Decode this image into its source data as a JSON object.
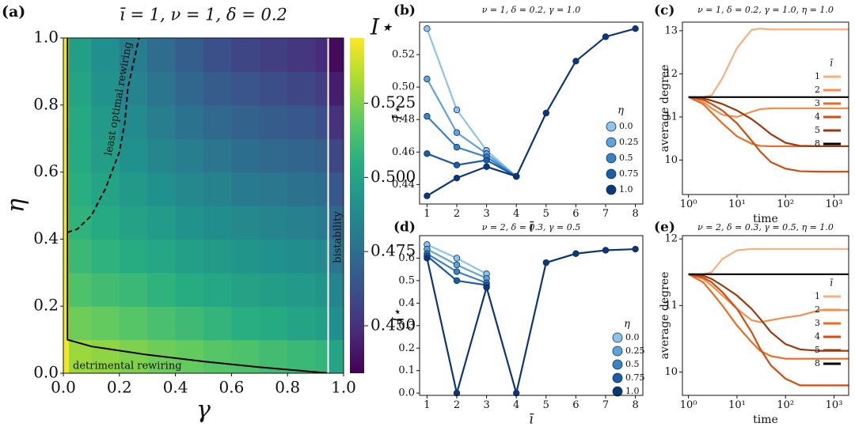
{
  "chart_data": [
    {
      "type": "heatmap",
      "panel_label": "(a)",
      "title": "ī = 1,  ν = 1,  δ = 0.2",
      "xlabel": "γ",
      "ylabel": "η",
      "colorbar_label": "I⋆",
      "colormap": "viridis",
      "x_edges": [
        0,
        0.02,
        0.1,
        0.2,
        0.3,
        0.4,
        0.5,
        0.6,
        0.7,
        0.8,
        0.9,
        0.945,
        1.0
      ],
      "y_edges": [
        0,
        0.1,
        0.2,
        0.3,
        0.4,
        0.5,
        0.6,
        0.7,
        0.8,
        0.9,
        1.0
      ],
      "values": [
        [
          0.545,
          0.53,
          0.528,
          0.525,
          0.522,
          0.52,
          0.517,
          0.515,
          0.512,
          0.51,
          0.508,
          0.5
        ],
        [
          0.545,
          0.522,
          0.52,
          0.517,
          0.514,
          0.511,
          0.508,
          0.505,
          0.503,
          0.5,
          0.498,
          0.49
        ],
        [
          0.545,
          0.515,
          0.512,
          0.51,
          0.507,
          0.504,
          0.501,
          0.499,
          0.497,
          0.495,
          0.493,
          0.485
        ],
        [
          0.545,
          0.51,
          0.507,
          0.504,
          0.501,
          0.498,
          0.495,
          0.493,
          0.491,
          0.489,
          0.487,
          0.478
        ],
        [
          0.545,
          0.507,
          0.503,
          0.499,
          0.496,
          0.492,
          0.489,
          0.487,
          0.485,
          0.483,
          0.481,
          0.472
        ],
        [
          0.545,
          0.505,
          0.5,
          0.495,
          0.491,
          0.487,
          0.484,
          0.481,
          0.479,
          0.477,
          0.475,
          0.465
        ],
        [
          0.545,
          0.503,
          0.497,
          0.491,
          0.486,
          0.482,
          0.478,
          0.475,
          0.473,
          0.471,
          0.469,
          0.458
        ],
        [
          0.545,
          0.502,
          0.495,
          0.488,
          0.482,
          0.477,
          0.473,
          0.47,
          0.467,
          0.465,
          0.462,
          0.45
        ],
        [
          0.545,
          0.5,
          0.492,
          0.485,
          0.478,
          0.472,
          0.467,
          0.464,
          0.461,
          0.458,
          0.455,
          0.443
        ],
        [
          0.545,
          0.498,
          0.49,
          0.482,
          0.474,
          0.468,
          0.462,
          0.458,
          0.455,
          0.452,
          0.448,
          0.437
        ]
      ],
      "clim": [
        0.434,
        0.547
      ],
      "cticks": [
        {
          "value": 0.45,
          "label": "0.450"
        },
        {
          "value": 0.475,
          "label": "0.475"
        },
        {
          "value": 0.5,
          "label": "0.500"
        },
        {
          "value": 0.525,
          "label": "0.525"
        }
      ],
      "xlim": [
        0,
        1
      ],
      "ylim": [
        0,
        1
      ],
      "xticks": [
        {
          "value": 0,
          "label": "0.0"
        },
        0.2,
        0.4,
        0.6,
        0.8,
        {
          "value": 1,
          "label": "1.0"
        }
      ],
      "yticks": [
        {
          "value": 0,
          "label": "0.0"
        },
        0.2,
        0.4,
        0.6,
        0.8,
        {
          "value": 1,
          "label": "1.0"
        }
      ],
      "curves": [
        {
          "style": "solid",
          "color": "#000000",
          "x": [
            0.015,
            0.015,
            0.1,
            0.3,
            0.5,
            0.7,
            0.95
          ],
          "y": [
            1.0,
            0.1,
            0.08,
            0.055,
            0.035,
            0.018,
            0.0
          ]
        },
        {
          "style": "dashed",
          "color": "#000000",
          "x": [
            0.015,
            0.05,
            0.1,
            0.15,
            0.2,
            0.22,
            0.23,
            0.27
          ],
          "y": [
            0.42,
            0.43,
            0.47,
            0.55,
            0.66,
            0.75,
            0.85,
            1.0
          ]
        }
      ],
      "vlines": [
        0.945
      ],
      "vline_color": "#ffffff",
      "annotations": [
        "least optimal rewiring",
        "bistability",
        "detrimental rewiring"
      ]
    },
    {
      "type": "line",
      "panel_label": "(b)",
      "title": "ν = 1,  δ = 0.2,  γ = 1.0",
      "xlabel": "ī",
      "ylabel": "I⋆",
      "markers": true,
      "legend_title": "η",
      "x": [
        1,
        2,
        3,
        4,
        5,
        6,
        7,
        8
      ],
      "series": [
        {
          "name": "0.0",
          "color": "#8ec4ea",
          "values": [
            0.536,
            0.486,
            0.461,
            0.445,
            null,
            null,
            null,
            null
          ]
        },
        {
          "name": "0.25",
          "color": "#5fa3da",
          "values": [
            0.505,
            0.472,
            0.459,
            0.445,
            null,
            null,
            null,
            null
          ]
        },
        {
          "name": "0.5",
          "color": "#3a82c4",
          "values": [
            0.482,
            0.463,
            0.457,
            0.445,
            null,
            null,
            null,
            null
          ]
        },
        {
          "name": "0.75",
          "color": "#1e5ca6",
          "values": [
            0.459,
            0.452,
            0.455,
            0.445,
            null,
            null,
            null,
            null
          ]
        },
        {
          "name": "1.0",
          "color": "#0c3777",
          "values": [
            0.433,
            0.444,
            0.451,
            0.445,
            0.484,
            0.516,
            0.531,
            0.536
          ]
        }
      ],
      "xlim": [
        0.75,
        8.25
      ],
      "ylim": [
        0.428,
        0.54
      ],
      "xticks": [
        1,
        2,
        3,
        4,
        5,
        6,
        7,
        8
      ],
      "yticks": [
        0.44,
        0.46,
        0.48,
        {
          "value": 0.5,
          "label": "0.50"
        },
        0.52
      ]
    },
    {
      "type": "line",
      "panel_label": "(c)",
      "title": "ν = 1,  δ = 0.2,  γ = 1.0,  η = 1.0",
      "xlabel": "time",
      "ylabel": "average degree",
      "markers": false,
      "legend_title": "ī",
      "xlog": true,
      "x": [
        1,
        2,
        3,
        5,
        10,
        20,
        30,
        50,
        100,
        200,
        500,
        1000,
        2000
      ],
      "series": [
        {
          "name": "1",
          "color": "#f6b07e",
          "values": [
            11.46,
            11.46,
            11.5,
            11.9,
            12.6,
            13.02,
            13.05,
            13.03,
            13.03,
            13.03,
            13.03,
            13.03,
            13.03
          ]
        },
        {
          "name": "2",
          "color": "#f28f4e",
          "values": [
            11.46,
            11.35,
            11.2,
            11.05,
            11.0,
            11.12,
            11.18,
            11.2,
            11.2,
            11.2,
            11.2,
            11.2,
            11.2
          ]
        },
        {
          "name": "3",
          "color": "#e96c22",
          "values": [
            11.46,
            11.3,
            11.1,
            10.85,
            10.55,
            10.38,
            10.33,
            10.32,
            10.32,
            10.32,
            10.32,
            10.32,
            10.32
          ]
        },
        {
          "name": "4",
          "color": "#cf4e10",
          "values": [
            11.46,
            11.4,
            11.3,
            11.15,
            10.85,
            10.45,
            10.2,
            9.95,
            9.8,
            9.74,
            9.73,
            9.73,
            9.73
          ]
        },
        {
          "name": "5",
          "color": "#9a3a0c",
          "values": [
            11.46,
            11.43,
            11.38,
            11.3,
            11.15,
            10.95,
            10.8,
            10.6,
            10.4,
            10.33,
            10.32,
            10.32,
            10.32
          ]
        },
        {
          "name": "8",
          "color": "#000000",
          "values": [
            11.46,
            11.46,
            11.46,
            11.46,
            11.46,
            11.46,
            11.46,
            11.46,
            11.46,
            11.46,
            11.46,
            11.46,
            11.46
          ]
        }
      ],
      "xlim": [
        0.75,
        2000
      ],
      "ylim": [
        9.2,
        13.2
      ],
      "xticks": [
        {
          "value": 1,
          "label": "10⁰"
        },
        {
          "value": 10,
          "label": "10¹"
        },
        {
          "value": 100,
          "label": "10²"
        },
        {
          "value": 1000,
          "label": "10³"
        }
      ],
      "yticks": [
        10,
        11,
        12,
        13
      ]
    },
    {
      "type": "line",
      "panel_label": "(d)",
      "title": "ν = 2,  δ = 0.3,  γ = 0.5",
      "xlabel": "ī",
      "ylabel": "I⋆",
      "markers": true,
      "legend_title": "η",
      "x": [
        1,
        2,
        3,
        4,
        5,
        6,
        7,
        8
      ],
      "series": [
        {
          "name": "0.0",
          "color": "#8ec4ea",
          "values": [
            0.66,
            0.6,
            0.53,
            null,
            null,
            null,
            null,
            null
          ]
        },
        {
          "name": "0.25",
          "color": "#5fa3da",
          "values": [
            0.64,
            0.57,
            0.51,
            null,
            null,
            null,
            null,
            null
          ]
        },
        {
          "name": "0.5",
          "color": "#3a82c4",
          "values": [
            0.62,
            0.54,
            0.49,
            null,
            null,
            null,
            null,
            null
          ]
        },
        {
          "name": "0.75",
          "color": "#1e5ca6",
          "values": [
            0.61,
            0.5,
            0.48,
            null,
            null,
            null,
            null,
            null
          ]
        },
        {
          "name": "1.0",
          "color": "#0c3777",
          "values": [
            0.6,
            0.0,
            0.47,
            0.0,
            0.58,
            0.62,
            0.635,
            0.64
          ]
        }
      ],
      "xlim": [
        0.75,
        8.25
      ],
      "ylim": [
        -0.01,
        0.7
      ],
      "xticks": [
        1,
        2,
        3,
        4,
        5,
        6,
        7,
        8
      ],
      "yticks": [
        {
          "value": 0,
          "label": "0.0"
        },
        0.1,
        0.2,
        0.3,
        0.4,
        0.5,
        0.6
      ]
    },
    {
      "type": "line",
      "panel_label": "(e)",
      "title": "ν = 2,  δ = 0.3,  γ = 0.5,  η = 1.0",
      "xlabel": "time",
      "ylabel": "average degree",
      "markers": false,
      "legend_title": "ī",
      "xlog": true,
      "x": [
        1,
        2,
        3,
        5,
        10,
        20,
        30,
        50,
        100,
        200,
        500,
        1000,
        2000
      ],
      "series": [
        {
          "name": "1",
          "color": "#f6b07e",
          "values": [
            11.47,
            11.47,
            11.5,
            11.7,
            11.83,
            11.85,
            11.85,
            11.85,
            11.85,
            11.85,
            11.85,
            11.85,
            11.85
          ]
        },
        {
          "name": "2",
          "color": "#f28f4e",
          "values": [
            11.47,
            11.4,
            11.3,
            11.15,
            10.95,
            10.78,
            10.75,
            10.78,
            10.82,
            10.85,
            10.93,
            10.93,
            10.93
          ]
        },
        {
          "name": "3",
          "color": "#e96c22",
          "values": [
            11.47,
            11.35,
            11.2,
            11.0,
            10.7,
            10.45,
            10.32,
            10.24,
            10.2,
            10.2,
            10.2,
            10.2,
            10.2
          ]
        },
        {
          "name": "4",
          "color": "#cf4e10",
          "values": [
            11.47,
            11.42,
            11.35,
            11.2,
            10.95,
            10.6,
            10.35,
            10.1,
            9.9,
            9.8,
            9.8,
            9.8,
            9.8
          ]
        },
        {
          "name": "5",
          "color": "#9a3a0c",
          "values": [
            11.47,
            11.45,
            11.4,
            11.3,
            11.15,
            10.95,
            10.8,
            10.6,
            10.42,
            10.34,
            10.32,
            10.32,
            10.32
          ]
        },
        {
          "name": "8",
          "color": "#000000",
          "values": [
            11.47,
            11.47,
            11.47,
            11.47,
            11.47,
            11.47,
            11.47,
            11.47,
            11.47,
            11.47,
            11.47,
            11.47,
            11.47
          ]
        }
      ],
      "xlim": [
        0.75,
        2000
      ],
      "ylim": [
        9.65,
        12.05
      ],
      "xticks": [
        {
          "value": 1,
          "label": "10⁰"
        },
        {
          "value": 10,
          "label": "10¹"
        },
        {
          "value": 100,
          "label": "10²"
        },
        {
          "value": 1000,
          "label": "10³"
        }
      ],
      "yticks": [
        10,
        11,
        12
      ]
    }
  ]
}
